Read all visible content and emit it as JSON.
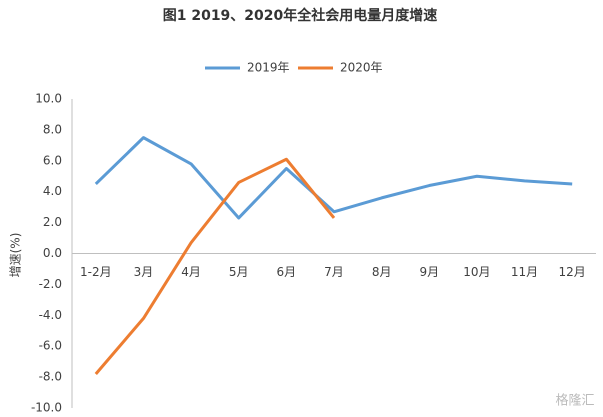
{
  "chart_data": {
    "type": "line",
    "title": "图1 2019、2020年全社会用电量月度增速",
    "y_label": "增速(%)",
    "categories": [
      "1-2月",
      "3月",
      "4月",
      "5月",
      "6月",
      "7月",
      "8月",
      "9月",
      "10月",
      "11月",
      "12月"
    ],
    "series": [
      {
        "name": "2019年",
        "color": "#5b9bd5",
        "values": [
          4.5,
          7.5,
          5.8,
          2.3,
          5.5,
          2.7,
          3.6,
          4.4,
          5.0,
          4.7,
          4.5
        ]
      },
      {
        "name": "2020年",
        "color": "#ed7d31",
        "values": [
          -7.8,
          -4.2,
          0.7,
          4.6,
          6.1,
          2.3,
          null,
          null,
          null,
          null,
          null
        ]
      }
    ],
    "ylim": [
      -10,
      10
    ],
    "yticks": [
      {
        "value": 10,
        "label": "10.0"
      },
      {
        "value": 8,
        "label": "8.0"
      },
      {
        "value": 6,
        "label": "6.0"
      },
      {
        "value": 4,
        "label": "4.0"
      },
      {
        "value": 2,
        "label": "2.0"
      },
      {
        "value": 0,
        "label": "0.0"
      },
      {
        "value": -2,
        "label": "-2.0"
      },
      {
        "value": -4,
        "label": "-4.0"
      },
      {
        "value": -6,
        "label": "-6.0"
      },
      {
        "value": -8,
        "label": "-8.0"
      },
      {
        "value": -10,
        "label": "-10.0"
      }
    ],
    "grid": false,
    "legend": "top",
    "watermark": "格隆汇"
  }
}
